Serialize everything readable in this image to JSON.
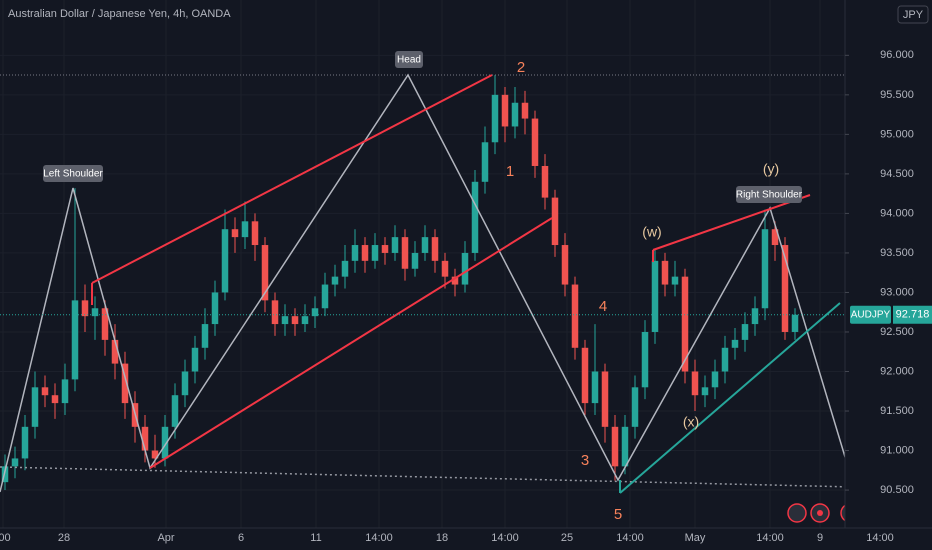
{
  "chart_data": {
    "type": "candlestick",
    "title": "Australian Dollar / Japanese Yen, 4h, OANDA",
    "currency": "JPY",
    "symbol": "AUDJPY",
    "last_price": 92.718,
    "up_color": "#26a69a",
    "down_color": "#ef5350",
    "grid": true,
    "ylim": [
      90.02,
      96.7
    ],
    "yticks": [
      {
        "value": 90.5,
        "label": "90.500"
      },
      {
        "value": 91,
        "label": "91.000"
      },
      {
        "value": 91.5,
        "label": "91.500"
      },
      {
        "value": 92,
        "label": "92.000"
      },
      {
        "value": 92.5,
        "label": "92.500"
      },
      {
        "value": 93,
        "label": "93.000"
      },
      {
        "value": 93.5,
        "label": "93.500"
      },
      {
        "value": 94,
        "label": "94.000"
      },
      {
        "value": 94.5,
        "label": "94.500"
      },
      {
        "value": 95,
        "label": "95.000"
      },
      {
        "value": 95.5,
        "label": "95.500"
      },
      {
        "value": 96,
        "label": "96.000"
      }
    ],
    "xlim": [
      -0.5,
      92.7
    ],
    "xticks": [
      {
        "value": -0.2,
        "label": ":00"
      },
      {
        "value": 5.9,
        "label": "28"
      },
      {
        "value": 16.1,
        "label": "Apr"
      },
      {
        "value": 23.6,
        "label": "6"
      },
      {
        "value": 31.1,
        "label": "11"
      },
      {
        "value": 37.4,
        "label": "14:00"
      },
      {
        "value": 43.7,
        "label": "18"
      },
      {
        "value": 50,
        "label": "14:00"
      },
      {
        "value": 56.2,
        "label": "25"
      },
      {
        "value": 62.5,
        "label": "14:00"
      },
      {
        "value": 69,
        "label": "May"
      },
      {
        "value": 76.5,
        "label": "14:00"
      },
      {
        "value": 81.5,
        "label": "9"
      },
      {
        "value": 87.5,
        "label": "14:00"
      }
    ],
    "annotations": [
      "Left Shoulder",
      "Head",
      "Right Shoulder",
      "1",
      "2",
      "3",
      "4",
      "5",
      "(w)",
      "(x)",
      "(y)"
    ],
    "ohlc": [
      [
        90.6,
        90.95,
        90.5,
        90.8
      ],
      [
        90.8,
        91.05,
        90.65,
        90.9
      ],
      [
        90.9,
        91.45,
        90.75,
        91.3
      ],
      [
        91.3,
        92.0,
        91.15,
        91.8
      ],
      [
        91.8,
        91.95,
        91.55,
        91.7
      ],
      [
        91.7,
        91.85,
        91.4,
        91.6
      ],
      [
        91.6,
        92.1,
        91.45,
        91.9
      ],
      [
        91.9,
        94.32,
        91.75,
        92.9
      ],
      [
        92.9,
        93.1,
        92.5,
        92.7
      ],
      [
        92.7,
        92.95,
        92.4,
        92.8
      ],
      [
        92.8,
        92.9,
        92.2,
        92.4
      ],
      [
        92.4,
        92.6,
        91.9,
        92.1
      ],
      [
        92.1,
        92.25,
        91.4,
        91.6
      ],
      [
        91.6,
        91.75,
        91.1,
        91.3
      ],
      [
        91.3,
        91.45,
        90.85,
        91.0
      ],
      [
        91.0,
        91.2,
        90.78,
        90.9
      ],
      [
        90.9,
        91.45,
        90.8,
        91.3
      ],
      [
        91.3,
        91.85,
        91.15,
        91.7
      ],
      [
        91.7,
        92.15,
        91.55,
        92.0
      ],
      [
        92.0,
        92.45,
        91.85,
        92.3
      ],
      [
        92.3,
        92.8,
        92.15,
        92.6
      ],
      [
        92.6,
        93.15,
        92.45,
        93.0
      ],
      [
        93.0,
        94.05,
        92.9,
        93.8
      ],
      [
        93.8,
        93.95,
        93.5,
        93.7
      ],
      [
        93.7,
        94.15,
        93.55,
        93.9
      ],
      [
        93.9,
        94.0,
        93.4,
        93.6
      ],
      [
        93.6,
        93.7,
        92.75,
        92.9
      ],
      [
        92.9,
        93.0,
        92.45,
        92.6
      ],
      [
        92.6,
        92.85,
        92.45,
        92.7
      ],
      [
        92.7,
        92.8,
        92.45,
        92.6
      ],
      [
        92.6,
        92.85,
        92.5,
        92.7
      ],
      [
        92.7,
        92.95,
        92.55,
        92.8
      ],
      [
        92.8,
        93.25,
        92.7,
        93.1
      ],
      [
        93.1,
        93.35,
        92.95,
        93.2
      ],
      [
        93.2,
        93.6,
        93.05,
        93.4
      ],
      [
        93.4,
        93.8,
        93.25,
        93.6
      ],
      [
        93.6,
        93.7,
        93.25,
        93.4
      ],
      [
        93.4,
        93.75,
        93.3,
        93.6
      ],
      [
        93.6,
        93.7,
        93.35,
        93.5
      ],
      [
        93.5,
        93.85,
        93.4,
        93.7
      ],
      [
        93.7,
        93.8,
        93.15,
        93.3
      ],
      [
        93.3,
        93.65,
        93.2,
        93.5
      ],
      [
        93.5,
        93.85,
        93.4,
        93.7
      ],
      [
        93.7,
        93.8,
        93.25,
        93.4
      ],
      [
        93.4,
        93.5,
        93.05,
        93.2
      ],
      [
        93.2,
        93.3,
        92.95,
        93.1
      ],
      [
        93.1,
        93.65,
        93.0,
        93.5
      ],
      [
        93.5,
        94.55,
        93.4,
        94.4
      ],
      [
        94.4,
        95.1,
        94.25,
        94.9
      ],
      [
        94.9,
        95.75,
        94.75,
        95.5
      ],
      [
        95.5,
        95.6,
        94.9,
        95.1
      ],
      [
        95.1,
        95.6,
        94.95,
        95.4
      ],
      [
        95.4,
        95.55,
        95.0,
        95.2
      ],
      [
        95.2,
        95.3,
        94.45,
        94.6
      ],
      [
        94.6,
        94.75,
        94.05,
        94.2
      ],
      [
        94.2,
        94.3,
        93.45,
        93.6
      ],
      [
        93.6,
        93.75,
        92.95,
        93.1
      ],
      [
        93.1,
        93.2,
        92.15,
        92.3
      ],
      [
        92.3,
        92.4,
        91.45,
        91.6
      ],
      [
        91.6,
        92.6,
        91.45,
        92.0
      ],
      [
        92.0,
        92.1,
        91.1,
        91.3
      ],
      [
        91.3,
        91.45,
        90.62,
        90.8
      ],
      [
        90.8,
        91.45,
        90.7,
        91.3
      ],
      [
        91.3,
        91.95,
        91.15,
        91.8
      ],
      [
        91.8,
        92.65,
        91.65,
        92.5
      ],
      [
        92.5,
        93.55,
        92.35,
        93.4
      ],
      [
        93.4,
        93.5,
        92.95,
        93.1
      ],
      [
        93.1,
        93.4,
        92.95,
        93.2
      ],
      [
        93.2,
        93.3,
        91.85,
        92.0
      ],
      [
        92.0,
        92.15,
        91.5,
        91.7
      ],
      [
        91.7,
        91.95,
        91.55,
        91.8
      ],
      [
        91.8,
        92.15,
        91.65,
        92.0
      ],
      [
        92.0,
        92.45,
        91.85,
        92.3
      ],
      [
        92.3,
        92.55,
        92.15,
        92.4
      ],
      [
        92.4,
        92.75,
        92.25,
        92.6
      ],
      [
        92.6,
        92.95,
        92.45,
        92.8
      ],
      [
        92.8,
        94.05,
        92.65,
        93.8
      ],
      [
        93.8,
        93.9,
        93.4,
        93.6
      ],
      [
        93.6,
        93.7,
        92.4,
        92.5
      ],
      [
        92.5,
        92.8,
        92.4,
        92.718
      ]
    ]
  }
}
